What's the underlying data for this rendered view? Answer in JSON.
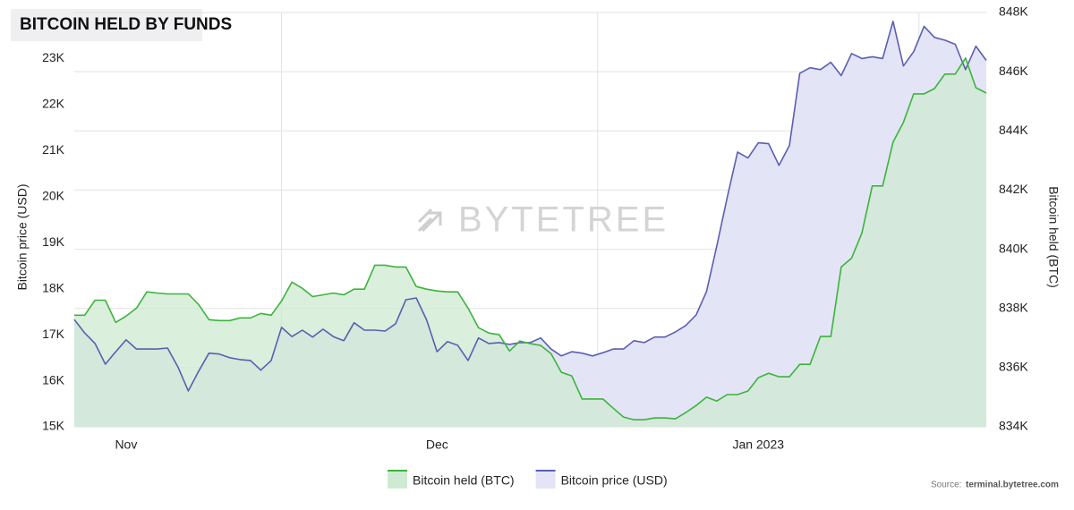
{
  "chart_data": {
    "type": "line",
    "title": "BITCOIN HELD BY FUNDS",
    "watermark": "BYTETREE",
    "source_label": "Source:",
    "source": "terminal.bytetree.com",
    "y_label": "Bitcoin price (USD)",
    "y2_label": "Bitcoin held (BTC)",
    "grid": true,
    "legend": "bottom",
    "categories": [
      null,
      null,
      null,
      null,
      null,
      "Nov",
      null,
      null,
      null,
      null,
      null,
      null,
      null,
      null,
      null,
      null,
      null,
      null,
      null,
      null,
      null,
      null,
      null,
      null,
      null,
      null,
      null,
      null,
      null,
      null,
      null,
      null,
      null,
      null,
      null,
      "Dec",
      null,
      null,
      null,
      null,
      null,
      null,
      null,
      null,
      null,
      null,
      null,
      null,
      null,
      null,
      null,
      null,
      null,
      null,
      null,
      null,
      null,
      null,
      null,
      null,
      null,
      null,
      null,
      null,
      null,
      null,
      "Jan 2023",
      null,
      null,
      null,
      null,
      null,
      null,
      null,
      null,
      null,
      null,
      null,
      null,
      null,
      null,
      null,
      null,
      null,
      null,
      null,
      null,
      null,
      null
    ],
    "ylim": [
      15000,
      24000
    ],
    "yticks": [
      {
        "value": 15000,
        "label": "15K"
      },
      {
        "value": 16000,
        "label": "16K"
      },
      {
        "value": 17000,
        "label": "17K"
      },
      {
        "value": 18000,
        "label": "18K"
      },
      {
        "value": 19000,
        "label": "19K"
      },
      {
        "value": 20000,
        "label": "20K"
      },
      {
        "value": 21000,
        "label": "21K"
      },
      {
        "value": 22000,
        "label": "22K"
      },
      {
        "value": 23000,
        "label": "23K"
      }
    ],
    "y2lim": [
      834000,
      848000
    ],
    "y2ticks": [
      {
        "value": 834000,
        "label": "834K"
      },
      {
        "value": 836000,
        "label": "836K"
      },
      {
        "value": 838000,
        "label": "838K"
      },
      {
        "value": 840000,
        "label": "840K"
      },
      {
        "value": 842000,
        "label": "842K"
      },
      {
        "value": 844000,
        "label": "844K"
      },
      {
        "value": 846000,
        "label": "846K"
      },
      {
        "value": 848000,
        "label": "848K"
      }
    ],
    "series": [
      {
        "name": "Bitcoin price (USD)",
        "color": "#5a5fb2",
        "fill": "#e4e4f7",
        "axis": "y",
        "values": [
          17330,
          17040,
          16810,
          16360,
          16630,
          16890,
          16690,
          16690,
          16690,
          16710,
          16300,
          15780,
          16210,
          16600,
          16580,
          16500,
          16460,
          16440,
          16230,
          16440,
          17160,
          16960,
          17100,
          16950,
          17120,
          16960,
          16870,
          17260,
          17100,
          17100,
          17080,
          17240,
          17760,
          17800,
          17320,
          16630,
          16850,
          16770,
          16440,
          16930,
          16810,
          16830,
          16790,
          16830,
          16830,
          16930,
          16690,
          16540,
          16630,
          16600,
          16540,
          16610,
          16690,
          16690,
          16870,
          16830,
          16950,
          16950,
          17060,
          17200,
          17430,
          17940,
          18930,
          19980,
          20970,
          20840,
          21170,
          21150,
          20680,
          21110,
          22680,
          22800,
          22760,
          22920,
          22630,
          23110,
          23000,
          23040,
          23000,
          23810,
          22840,
          23150,
          23700,
          23460,
          23400,
          23310,
          22760,
          23270,
          22960
        ]
      },
      {
        "name": "Bitcoin held (BTC)",
        "color": "#3cb43c",
        "fill": "#cfead2",
        "axis": "y2",
        "values": [
          837770,
          837770,
          838280,
          838280,
          837530,
          837740,
          838010,
          838560,
          838520,
          838490,
          838490,
          838490,
          838130,
          837620,
          837590,
          837590,
          837680,
          837680,
          837830,
          837770,
          838250,
          838890,
          838680,
          838400,
          838460,
          838520,
          838460,
          838650,
          838650,
          839460,
          839460,
          839400,
          839400,
          838740,
          838650,
          838590,
          838560,
          838560,
          838010,
          837350,
          837170,
          837110,
          836560,
          836900,
          836810,
          836750,
          836470,
          835840,
          835720,
          834940,
          834940,
          834940,
          834630,
          834330,
          834240,
          834240,
          834300,
          834300,
          834270,
          834480,
          834720,
          835000,
          834870,
          835090,
          835090,
          835210,
          835660,
          835810,
          835690,
          835690,
          836110,
          836110,
          837050,
          837050,
          839400,
          839700,
          840550,
          842140,
          842140,
          843620,
          844290,
          845250,
          845250,
          845430,
          845920,
          845920,
          846460,
          845460,
          845280
        ]
      }
    ]
  }
}
